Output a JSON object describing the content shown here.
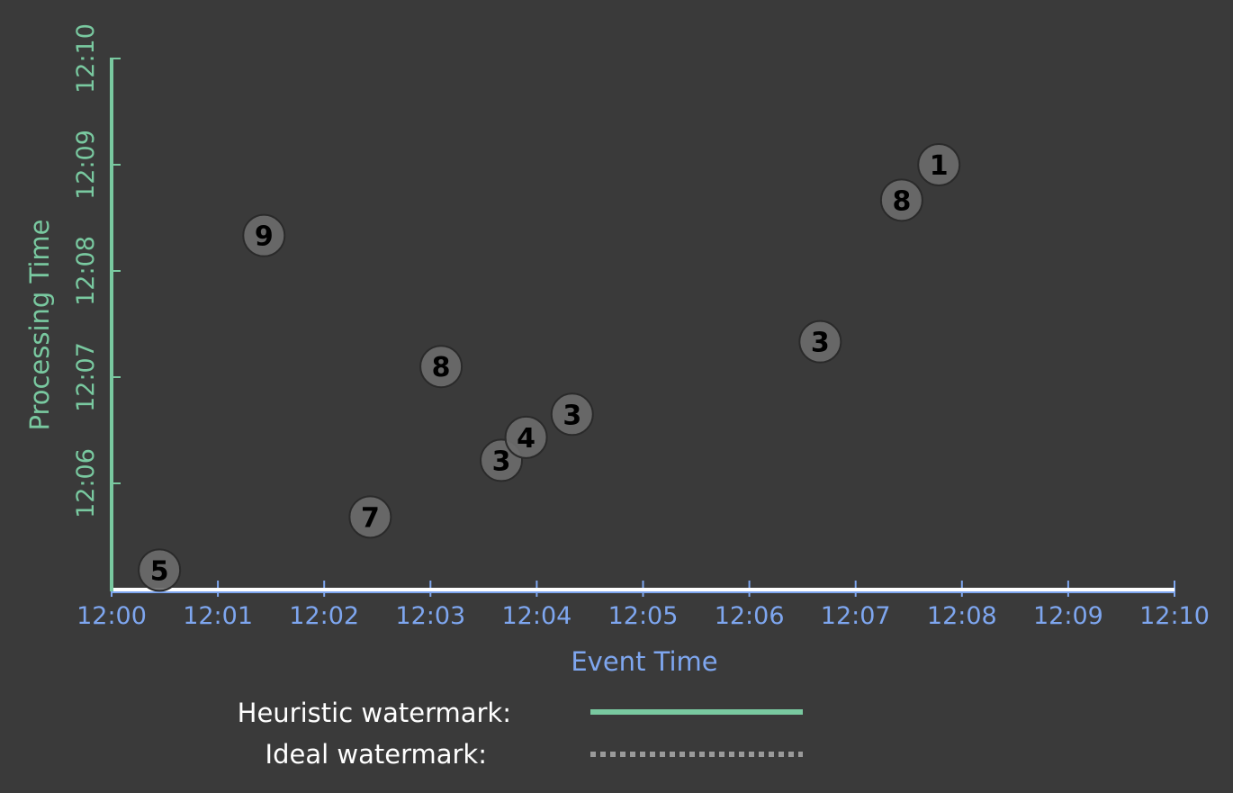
{
  "colors": {
    "background": "#3a3a3a",
    "x_axis": "#7ea6ef",
    "y_axis": "#79c9a0",
    "heuristic_watermark": "#79c9a0",
    "ideal_watermark": "#9a9a9a",
    "point_fill": "#6b6b6b"
  },
  "chart_data": {
    "type": "scatter",
    "title": "",
    "xlabel": "Event Time",
    "ylabel": "Processing Time",
    "x_ticks": [
      "12:00",
      "12:01",
      "12:02",
      "12:03",
      "12:04",
      "12:05",
      "12:06",
      "12:07",
      "12:08",
      "12:09",
      "12:10"
    ],
    "y_ticks": [
      "12:06",
      "12:07",
      "12:08",
      "12:09",
      "12:10"
    ],
    "xlim": [
      "12:00",
      "12:10"
    ],
    "ylim": [
      "12:05",
      "12:10"
    ],
    "grid": false,
    "points": [
      {
        "label": "5",
        "x": "12:00:27",
        "y": "12:05:11"
      },
      {
        "label": "9",
        "x": "12:01:26",
        "y": "12:08:20"
      },
      {
        "label": "7",
        "x": "12:02:26",
        "y": "12:05:41"
      },
      {
        "label": "8",
        "x": "12:03:06",
        "y": "12:07:06"
      },
      {
        "label": "3",
        "x": "12:03:40",
        "y": "12:06:13"
      },
      {
        "label": "4",
        "x": "12:03:54",
        "y": "12:06:26"
      },
      {
        "label": "3",
        "x": "12:04:20",
        "y": "12:06:39"
      },
      {
        "label": "3",
        "x": "12:06:40",
        "y": "12:07:20"
      },
      {
        "label": "8",
        "x": "12:07:26",
        "y": "12:08:40"
      },
      {
        "label": "1",
        "x": "12:07:47",
        "y": "12:09:00"
      }
    ]
  },
  "legend": {
    "placement": "bottom",
    "items": [
      {
        "label": "Heuristic watermark:",
        "style": "solid"
      },
      {
        "label": "Ideal watermark:",
        "style": "dotted"
      }
    ]
  }
}
